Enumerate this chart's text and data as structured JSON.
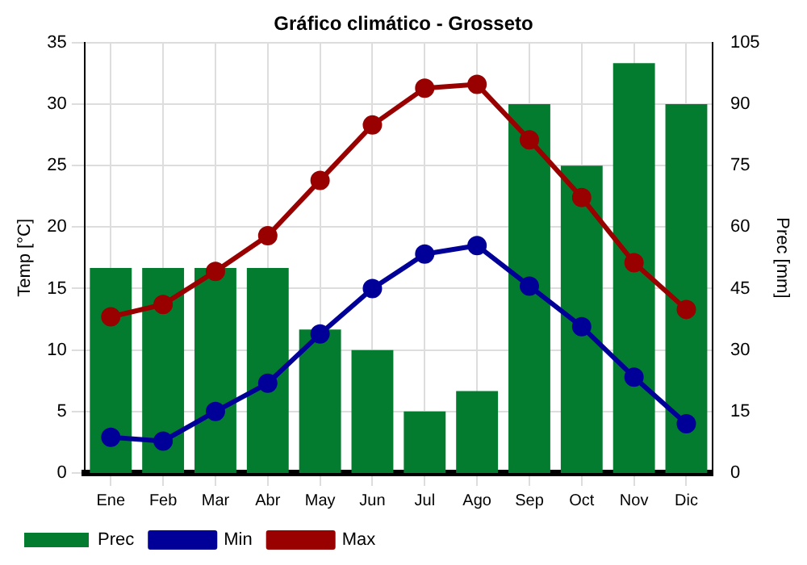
{
  "chart_data": {
    "type": "bar",
    "title": "Gráfico climático - Grosseto",
    "ylabel": "Temp [°C]",
    "y2label": "Prec [mm]",
    "categories": [
      "Ene",
      "Feb",
      "Mar",
      "Abr",
      "May",
      "Jun",
      "Jul",
      "Ago",
      "Sep",
      "Oct",
      "Nov",
      "Dic"
    ],
    "series": [
      {
        "name": "Prec",
        "axis": "y2",
        "color": "#047c2f",
        "values": [
          50,
          50,
          50,
          50,
          35,
          30,
          15,
          20,
          90,
          75,
          100,
          90
        ]
      },
      {
        "name": "Min",
        "type": "line",
        "color": "#000099",
        "values": [
          2.9,
          2.6,
          5.0,
          7.3,
          11.3,
          15.0,
          17.8,
          18.5,
          15.2,
          11.9,
          7.8,
          4.0
        ]
      },
      {
        "name": "Max",
        "type": "line",
        "color": "#990000",
        "values": [
          12.7,
          13.7,
          16.4,
          19.3,
          23.8,
          28.3,
          31.3,
          31.6,
          27.1,
          22.4,
          17.1,
          13.3
        ]
      }
    ],
    "ylim": [
      0,
      35
    ],
    "yticks": [
      0,
      5,
      10,
      15,
      20,
      25,
      30,
      35
    ],
    "y2lim": [
      0,
      105
    ],
    "y2ticks": [
      0,
      15,
      30,
      45,
      60,
      75,
      90,
      105
    ],
    "grid": true,
    "legend": "bottom left",
    "marker": "circle",
    "line_style": "solid"
  }
}
